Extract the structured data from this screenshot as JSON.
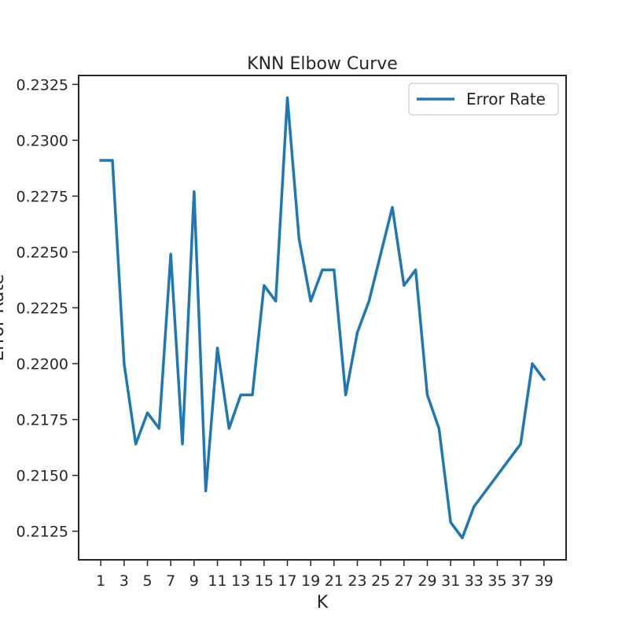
{
  "chart_data": {
    "type": "line",
    "title": "KNN Elbow Curve",
    "xlabel": "K",
    "ylabel": "Error Rate",
    "x": [
      1,
      2,
      3,
      4,
      5,
      6,
      7,
      8,
      9,
      10,
      11,
      12,
      13,
      14,
      15,
      16,
      17,
      18,
      19,
      20,
      21,
      22,
      23,
      24,
      25,
      26,
      27,
      28,
      29,
      30,
      31,
      32,
      33,
      34,
      35,
      36,
      37,
      38,
      39
    ],
    "series": [
      {
        "name": "Error Rate",
        "color": "#1f77b4",
        "values": [
          0.2291,
          0.2291,
          0.22,
          0.2164,
          0.2178,
          0.2171,
          0.2249,
          0.2164,
          0.2277,
          0.2143,
          0.2207,
          0.2171,
          0.2186,
          0.2186,
          0.2235,
          0.2228,
          0.2319,
          0.2256,
          0.2228,
          0.2242,
          0.2242,
          0.2186,
          0.2214,
          0.2228,
          0.2249,
          0.227,
          0.2235,
          0.2242,
          0.2186,
          0.2171,
          0.2129,
          0.2122,
          0.2136,
          0.2143,
          0.215,
          0.2157,
          0.2164,
          0.22,
          0.2193
        ]
      }
    ],
    "xticks": [
      1,
      3,
      5,
      7,
      9,
      11,
      13,
      15,
      17,
      19,
      21,
      23,
      25,
      27,
      29,
      31,
      33,
      35,
      37,
      39
    ],
    "yticks": [
      0.2125,
      0.215,
      0.2175,
      0.22,
      0.2225,
      0.225,
      0.2275,
      0.23,
      0.2325
    ],
    "xlim": [
      -0.9,
      40.9
    ],
    "ylim": [
      0.21122,
      0.2329
    ],
    "grid": false,
    "legend_position": "top-right"
  }
}
